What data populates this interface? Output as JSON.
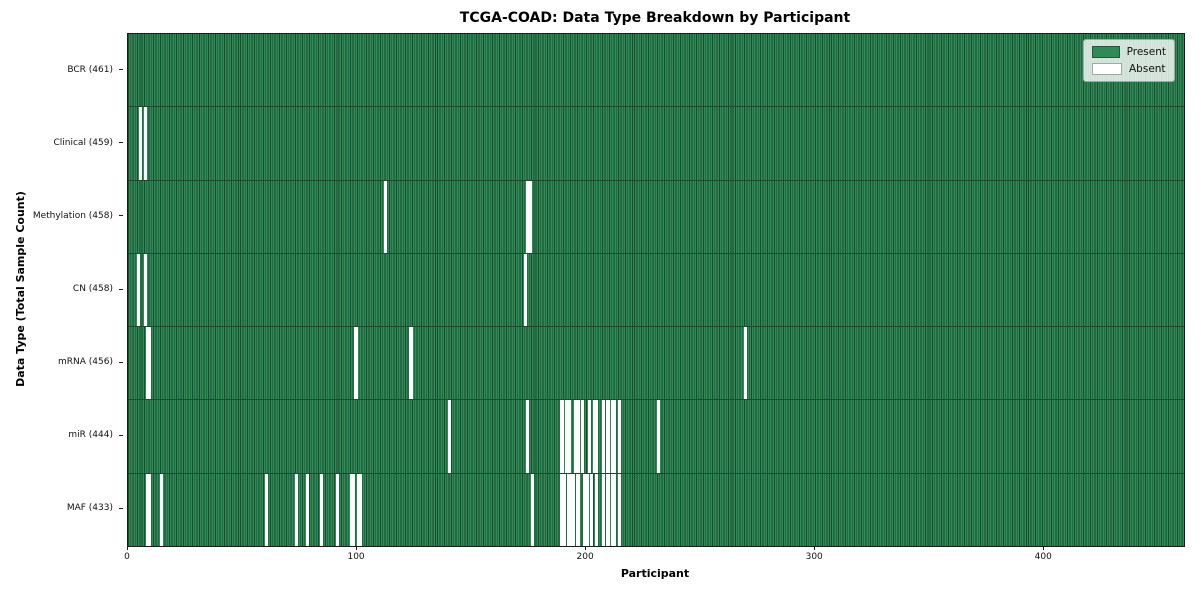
{
  "figure": {
    "title": "TCGA-COAD: Data Type Breakdown by Participant",
    "xlabel": "Participant",
    "ylabel": "Data Type (Total Sample Count)"
  },
  "legend": {
    "present_label": "Present",
    "absent_label": "Absent"
  },
  "colors": {
    "present_fill": "#2e8b57",
    "present_edge": "#1b4a2f",
    "absent": "#ffffff",
    "plot_border": "#1a1a1a"
  },
  "chart_data": {
    "type": "heatmap",
    "title": "TCGA-COAD: Data Type Breakdown by Participant",
    "xlabel": "Participant",
    "ylabel": "Data Type (Total Sample Count)",
    "legend_position": "upper right",
    "n_participants": 461,
    "xlim": [
      0,
      461
    ],
    "x_ticks": [
      0,
      100,
      200,
      300,
      400
    ],
    "cell_states": [
      "Present",
      "Absent"
    ],
    "rows": [
      {
        "label": "BCR (461)",
        "data_type": "BCR",
        "present_count": 461,
        "absent_participants": []
      },
      {
        "label": "Clinical (459)",
        "data_type": "Clinical",
        "present_count": 459,
        "absent_participants": [
          5,
          7
        ]
      },
      {
        "label": "Methylation (458)",
        "data_type": "Methylation",
        "present_count": 458,
        "absent_participants": [
          112,
          174,
          175
        ]
      },
      {
        "label": "CN (458)",
        "data_type": "CN",
        "present_count": 458,
        "absent_participants": [
          4,
          7,
          173
        ]
      },
      {
        "label": "mRNA (456)",
        "data_type": "mRNA",
        "present_count": 456,
        "absent_participants": [
          8,
          9,
          99,
          123,
          269
        ]
      },
      {
        "label": "miR (444)",
        "data_type": "miR",
        "present_count": 444,
        "absent_participants": [
          140,
          174,
          189,
          191,
          192,
          195,
          196,
          198,
          201,
          203,
          204,
          207,
          209,
          211,
          212,
          214,
          231
        ]
      },
      {
        "label": "MAF (433)",
        "data_type": "MAF",
        "present_count": 433,
        "absent_participants": [
          8,
          9,
          14,
          60,
          73,
          78,
          84,
          91,
          97,
          98,
          100,
          101,
          176,
          189,
          190,
          192,
          193,
          194,
          196,
          199,
          200,
          202,
          204,
          207,
          209,
          211,
          212,
          214
        ]
      }
    ]
  }
}
